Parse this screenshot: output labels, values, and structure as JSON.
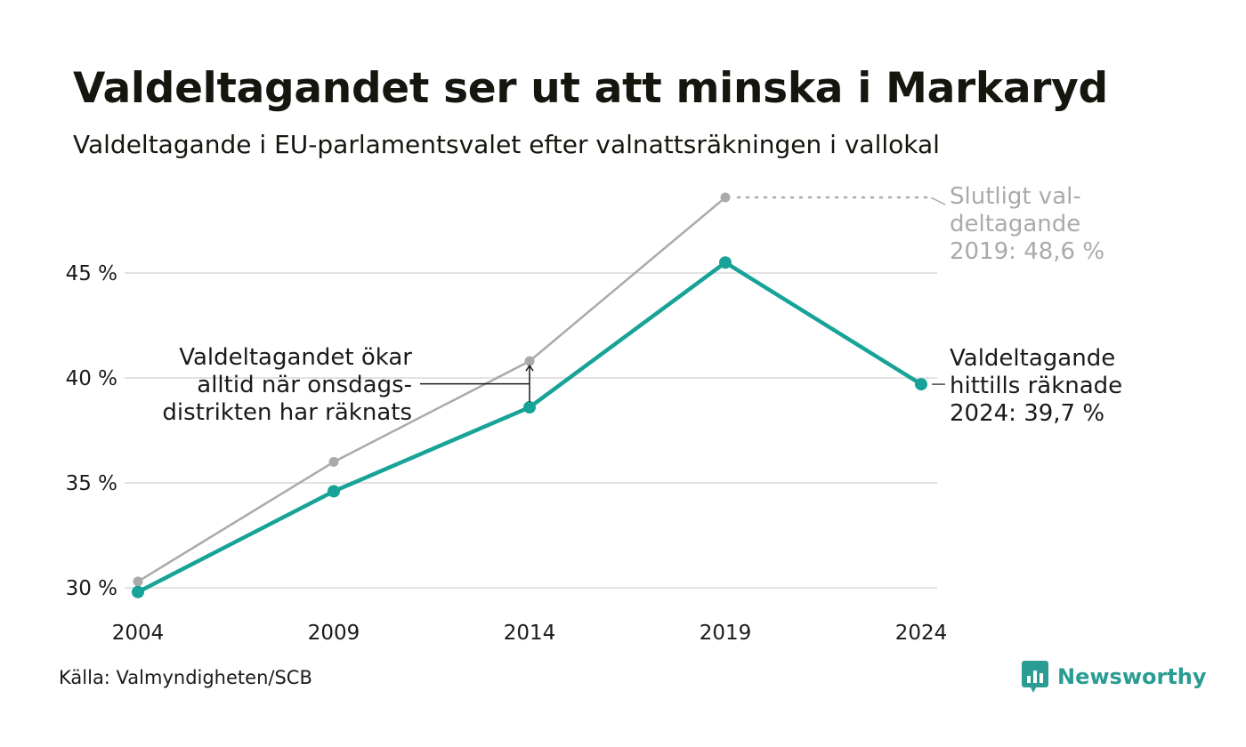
{
  "title": "Valdeltagandet ser ut att minska i Markaryd",
  "subtitle": "Valdeltagande i EU-parlamentsvalet efter valnattsräkningen i vallokal",
  "source": "Källa: Valmyndigheten/SCB",
  "brand": "Newsworthy",
  "colors": {
    "preliminary": "#17a398",
    "final": "#aaaaaa",
    "grid": "#e3e3e3",
    "annotation": "#1a1a1a"
  },
  "chart_data": {
    "type": "line",
    "x": [
      2004,
      2009,
      2014,
      2019,
      2024
    ],
    "ylim": [
      29.5,
      49
    ],
    "yticks": [
      30,
      35,
      40,
      45
    ],
    "ytick_labels": [
      "30 %",
      "35 %",
      "40 %",
      "45 %"
    ],
    "xtick_labels": [
      "2004",
      "2009",
      "2014",
      "2019",
      "2024"
    ],
    "series": [
      {
        "key": "final",
        "values": [
          30.3,
          36.0,
          40.8,
          48.6,
          null
        ]
      },
      {
        "key": "preliminary",
        "values": [
          29.8,
          34.6,
          38.6,
          45.5,
          39.7
        ]
      }
    ],
    "annotations": {
      "final_label": [
        "Slutligt val-",
        "deltagande",
        "2019: 48,6 %"
      ],
      "preliminary_label": [
        "Valdeltagande",
        "hittills räknade",
        "2024: 39,7 %"
      ],
      "wednesday_note": [
        "Valdeltagandet ökar",
        "alltid när onsdags-",
        "distrikten har räknats"
      ]
    },
    "grid": true
  }
}
